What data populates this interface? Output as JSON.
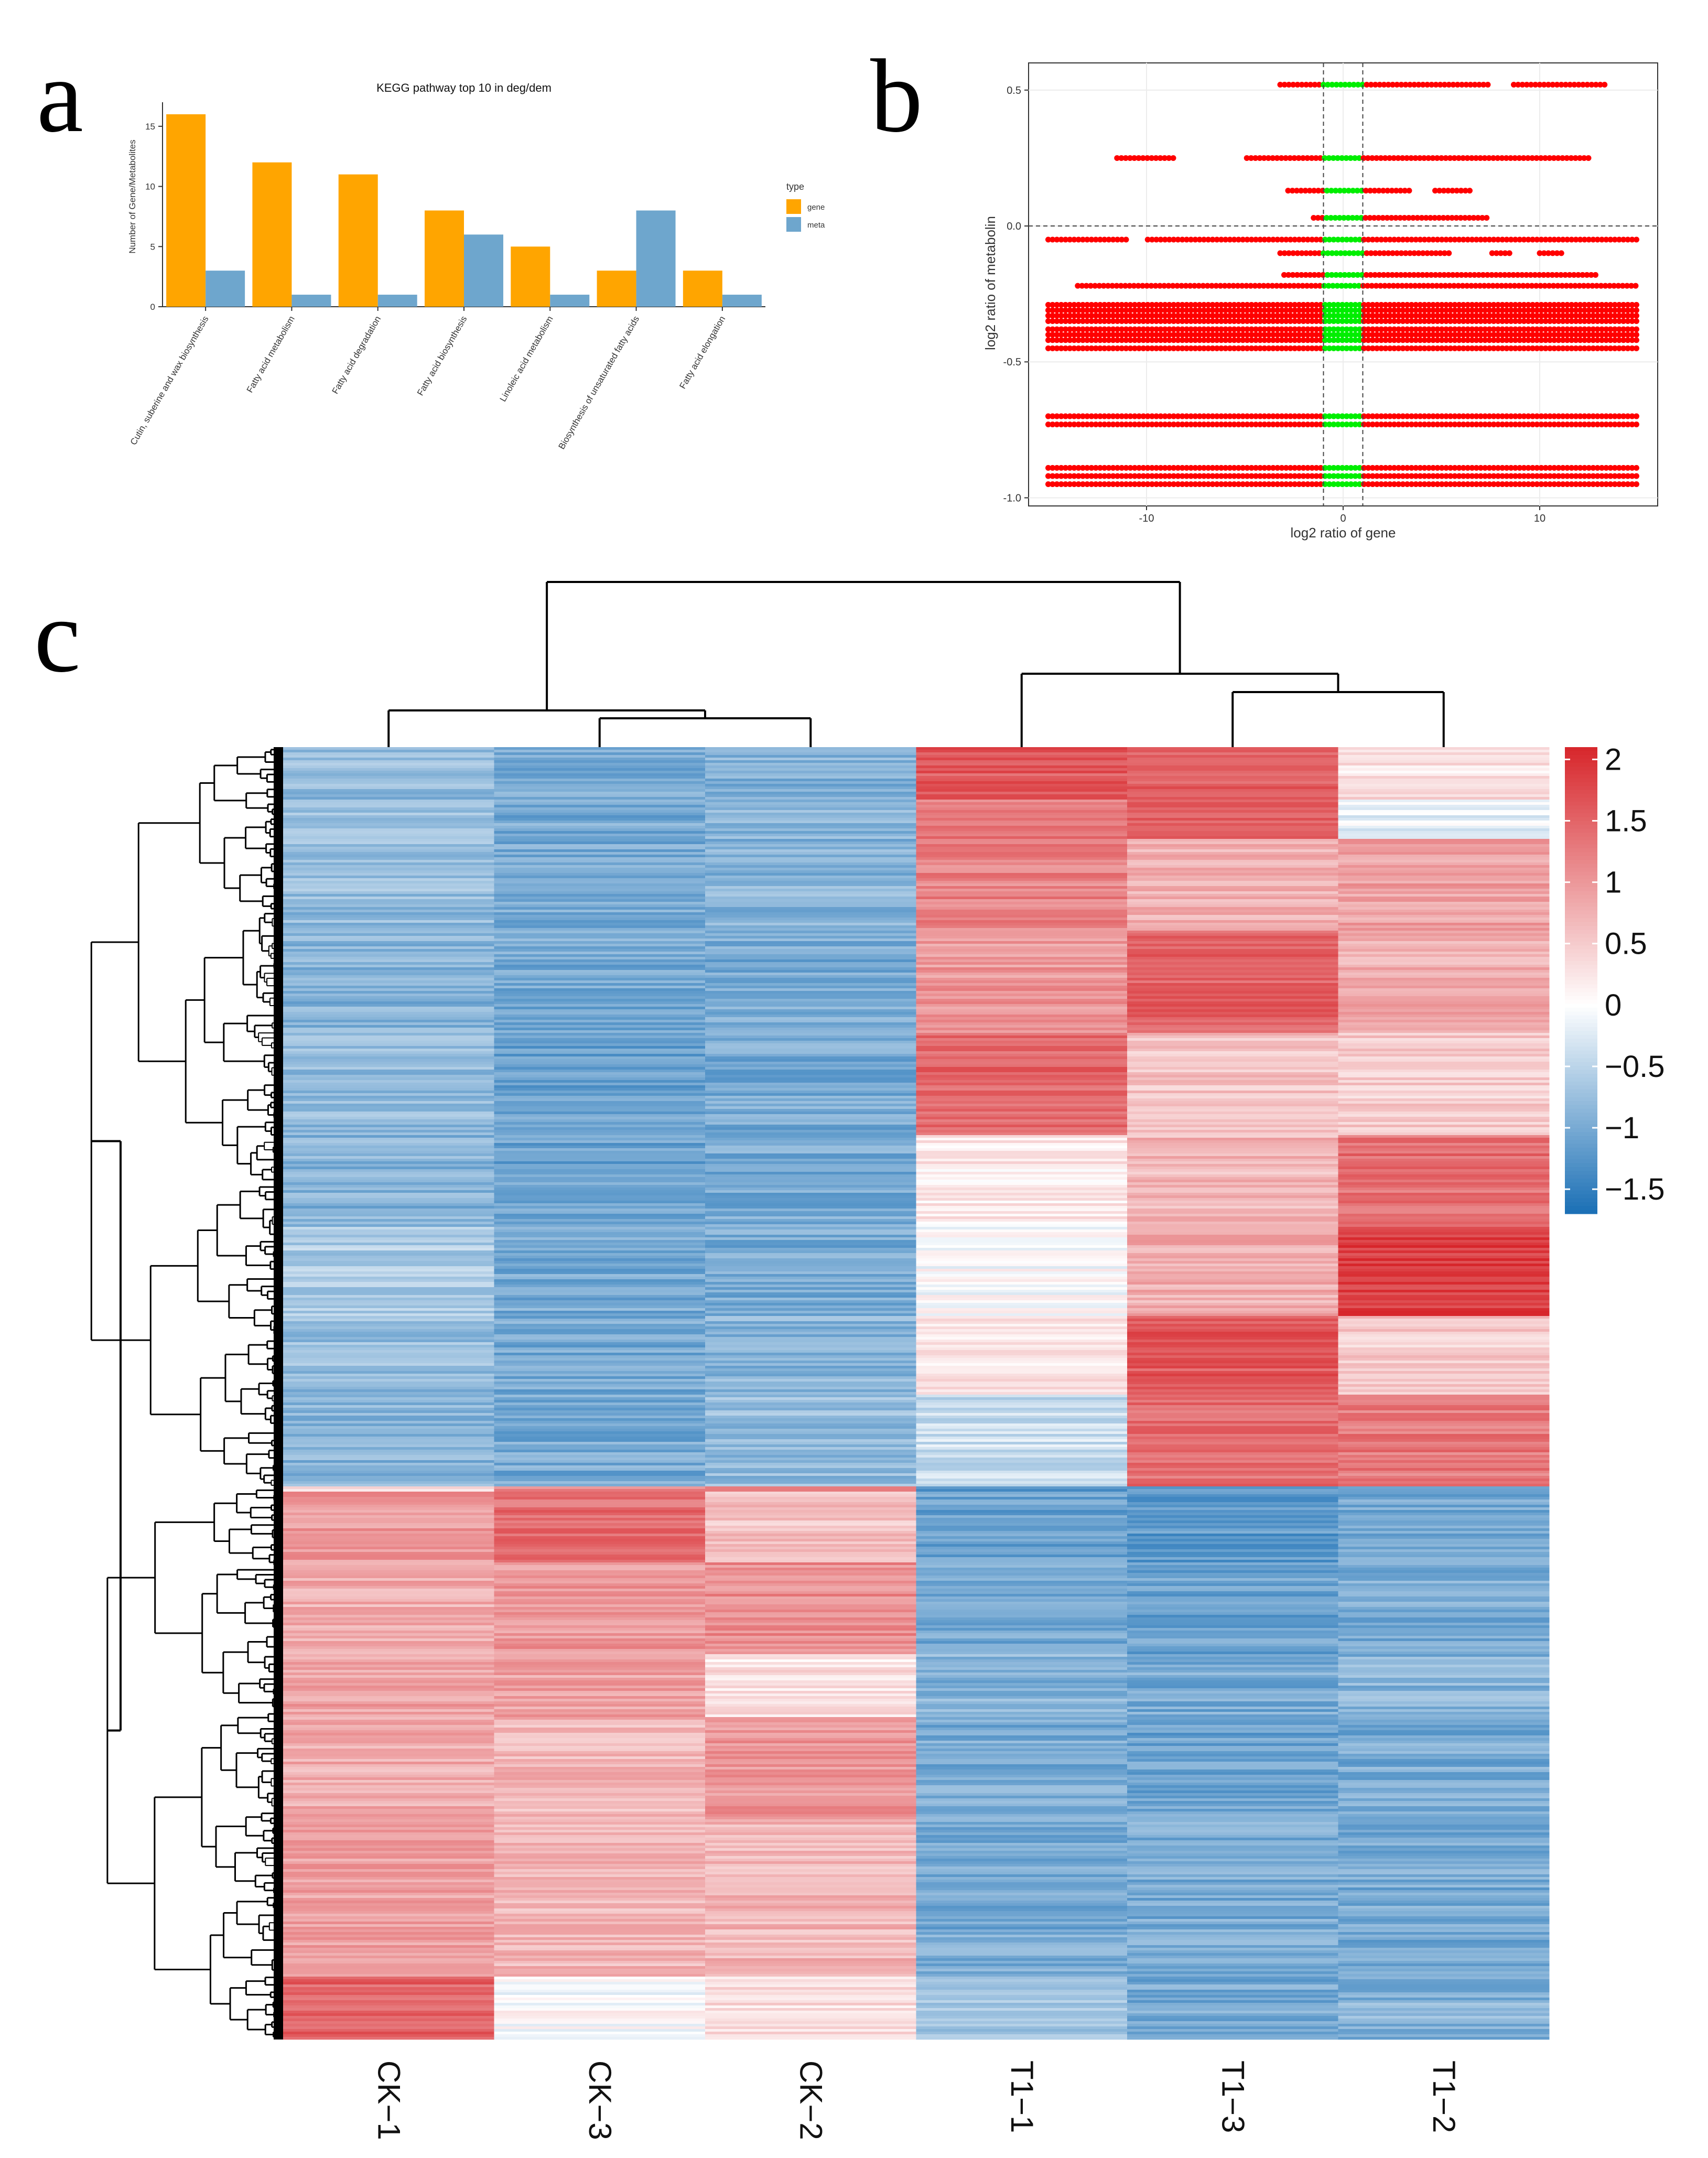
{
  "panels": {
    "a": {
      "letter": "a"
    },
    "b": {
      "letter": "b"
    },
    "c": {
      "letter": "c"
    }
  },
  "colors": {
    "gene": "#FFA500",
    "meta": "#6EA6CD",
    "scatter_red": "#FF0000",
    "scatter_green": "#00EE00",
    "heat_high": "#D7262B",
    "heat_mid": "#FFFFFF",
    "heat_low": "#1A6FB5"
  },
  "chart_data": [
    {
      "type": "bar",
      "title": "KEGG pathway top 10 in deg/dem",
      "xlabel": "",
      "ylabel": "Number of Gene/Metabolites",
      "categories": [
        "Cutin, suberine and wax biosynthesis",
        "Fatty acid metabolism",
        "Fatty acid degradation",
        "Fatty acid biosynthesis",
        "Linoleic acid metabolism",
        "Biosynthesis of unsaturated fatty acids",
        "Fatty acid elongation"
      ],
      "series": [
        {
          "name": "gene",
          "values": [
            16,
            12,
            11,
            8,
            5,
            3,
            3
          ]
        },
        {
          "name": "meta",
          "values": [
            3,
            1,
            1,
            6,
            1,
            8,
            1
          ]
        }
      ],
      "yticks": [
        0,
        5,
        10,
        15
      ],
      "ylim": [
        0,
        17
      ],
      "legend": {
        "title": "type",
        "labels": [
          "gene",
          "meta"
        ],
        "placement": "right"
      }
    },
    {
      "type": "scatter",
      "xlabel": "log2 ratio of gene",
      "ylabel": "log2 ratio of metabolin",
      "xlim": [
        -16,
        16
      ],
      "ylim": [
        -1.03,
        0.6
      ],
      "xticks": [
        -10,
        0,
        10
      ],
      "yticks": [
        0.5,
        0.0,
        -0.5,
        -1.0
      ],
      "ytick_labels": [
        "0.5",
        "0.0",
        "-0.5",
        "-1.0"
      ],
      "xtick_labels": [
        "-10",
        "0",
        "10"
      ],
      "threshold_lines": {
        "x": [
          -1,
          1
        ],
        "y": [
          0
        ]
      },
      "rows": [
        {
          "y": 0.52,
          "xmin": -3.2,
          "xmax": 13.3,
          "gaps": [
            [
              7.5,
              8.5
            ]
          ]
        },
        {
          "y": 0.25,
          "xmin": -11.5,
          "xmax": 12.5,
          "gaps": [
            [
              -8.5,
              -5.0
            ]
          ]
        },
        {
          "y": 0.13,
          "xmin": -2.8,
          "xmax": 6.5,
          "gaps": [
            [
              3.5,
              4.5
            ]
          ]
        },
        {
          "y": 0.03,
          "xmin": -1.5,
          "xmax": 7.5,
          "gaps": []
        },
        {
          "y": -0.05,
          "xmin": -15,
          "xmax": 15,
          "gaps": [
            [
              -11,
              -10
            ]
          ]
        },
        {
          "y": -0.1,
          "xmin": -3.2,
          "xmax": 11.2,
          "gaps": [
            [
              5.5,
              7.5
            ],
            [
              8.5,
              10
            ]
          ]
        },
        {
          "y": -0.18,
          "xmin": -3.0,
          "xmax": 13.0,
          "gaps": []
        },
        {
          "y": -0.22,
          "xmin": -13.5,
          "xmax": 15,
          "gaps": []
        },
        {
          "y": -0.29,
          "xmin": -15,
          "xmax": 15,
          "gaps": []
        },
        {
          "y": -0.31,
          "xmin": -15,
          "xmax": 15,
          "gaps": []
        },
        {
          "y": -0.33,
          "xmin": -15,
          "xmax": 15,
          "gaps": []
        },
        {
          "y": -0.35,
          "xmin": -15,
          "xmax": 15,
          "gaps": []
        },
        {
          "y": -0.38,
          "xmin": -15,
          "xmax": 15,
          "gaps": []
        },
        {
          "y": -0.4,
          "xmin": -15,
          "xmax": 15,
          "gaps": []
        },
        {
          "y": -0.42,
          "xmin": -15,
          "xmax": 15,
          "gaps": []
        },
        {
          "y": -0.45,
          "xmin": -15,
          "xmax": 15,
          "gaps": []
        },
        {
          "y": -0.7,
          "xmin": -15,
          "xmax": 15,
          "gaps": []
        },
        {
          "y": -0.73,
          "xmin": -15,
          "xmax": 15,
          "gaps": []
        },
        {
          "y": -0.89,
          "xmin": -15,
          "xmax": 15,
          "gaps": []
        },
        {
          "y": -0.92,
          "xmin": -15,
          "xmax": 15,
          "gaps": []
        },
        {
          "y": -0.95,
          "xmin": -15,
          "xmax": 15,
          "gaps": []
        }
      ]
    },
    {
      "type": "heatmap",
      "columns": [
        "CK−1",
        "CK−3",
        "CK−2",
        "T1−1",
        "T1−3",
        "T1−2"
      ],
      "color_scale": {
        "min": -1.7,
        "max": 2.1,
        "ticks": [
          2,
          1.5,
          1,
          0.5,
          0,
          -0.5,
          -1,
          -1.5
        ],
        "tick_labels": [
          "2",
          "1.5",
          "1",
          "0.5",
          "0",
          "−0.5",
          "−1",
          "−1.5"
        ]
      },
      "row_segments": [
        {
          "end": 0.04,
          "values": [
            -0.8,
            -1.0,
            -0.9,
            1.6,
            1.5,
            0.3
          ]
        },
        {
          "end": 0.07,
          "values": [
            -0.7,
            -1.0,
            -0.9,
            1.3,
            1.6,
            -0.2
          ]
        },
        {
          "end": 0.14,
          "values": [
            -0.8,
            -1.0,
            -0.9,
            1.2,
            0.8,
            0.9
          ]
        },
        {
          "end": 0.22,
          "values": [
            -0.9,
            -1.0,
            -1.0,
            1.0,
            1.5,
            0.8
          ]
        },
        {
          "end": 0.3,
          "values": [
            -0.8,
            -1.1,
            -1.0,
            1.5,
            0.6,
            0.5
          ]
        },
        {
          "end": 0.37,
          "values": [
            -0.9,
            -1.1,
            -1.0,
            0.2,
            0.7,
            1.4
          ]
        },
        {
          "end": 0.44,
          "values": [
            -0.6,
            -1.0,
            -1.0,
            0.0,
            0.8,
            1.9
          ]
        },
        {
          "end": 0.5,
          "values": [
            -0.8,
            -1.0,
            -0.9,
            0.3,
            1.6,
            0.5
          ]
        },
        {
          "end": 0.57,
          "values": [
            -0.9,
            -1.0,
            -0.8,
            -0.4,
            1.4,
            1.3
          ]
        },
        {
          "end": 0.575,
          "values": [
            0.2,
            1.2,
            1.4,
            -1.2,
            -1.2,
            -1.0
          ]
        },
        {
          "end": 0.63,
          "values": [
            1.0,
            1.4,
            0.6,
            -1.1,
            -1.2,
            -1.0
          ]
        },
        {
          "end": 0.7,
          "values": [
            0.8,
            1.0,
            1.1,
            -1.0,
            -1.1,
            -1.0
          ]
        },
        {
          "end": 0.75,
          "values": [
            0.9,
            0.9,
            0.3,
            -0.9,
            -1.0,
            -0.9
          ]
        },
        {
          "end": 0.83,
          "values": [
            0.8,
            0.7,
            1.0,
            -1.0,
            -1.1,
            -1.0
          ]
        },
        {
          "end": 0.95,
          "values": [
            0.9,
            0.7,
            0.7,
            -1.0,
            -1.0,
            -1.0
          ]
        },
        {
          "end": 1.0,
          "values": [
            1.5,
            0.0,
            0.3,
            -0.7,
            -1.0,
            -0.9
          ]
        }
      ],
      "column_dendrogram": [
        {
          "left": 0,
          "right": 1,
          "height": 0.28,
          "label": "CK3-CK2"
        },
        {
          "left": 2,
          "right": 3,
          "height": 0.3,
          "label": "T13-T12"
        }
      ]
    }
  ]
}
